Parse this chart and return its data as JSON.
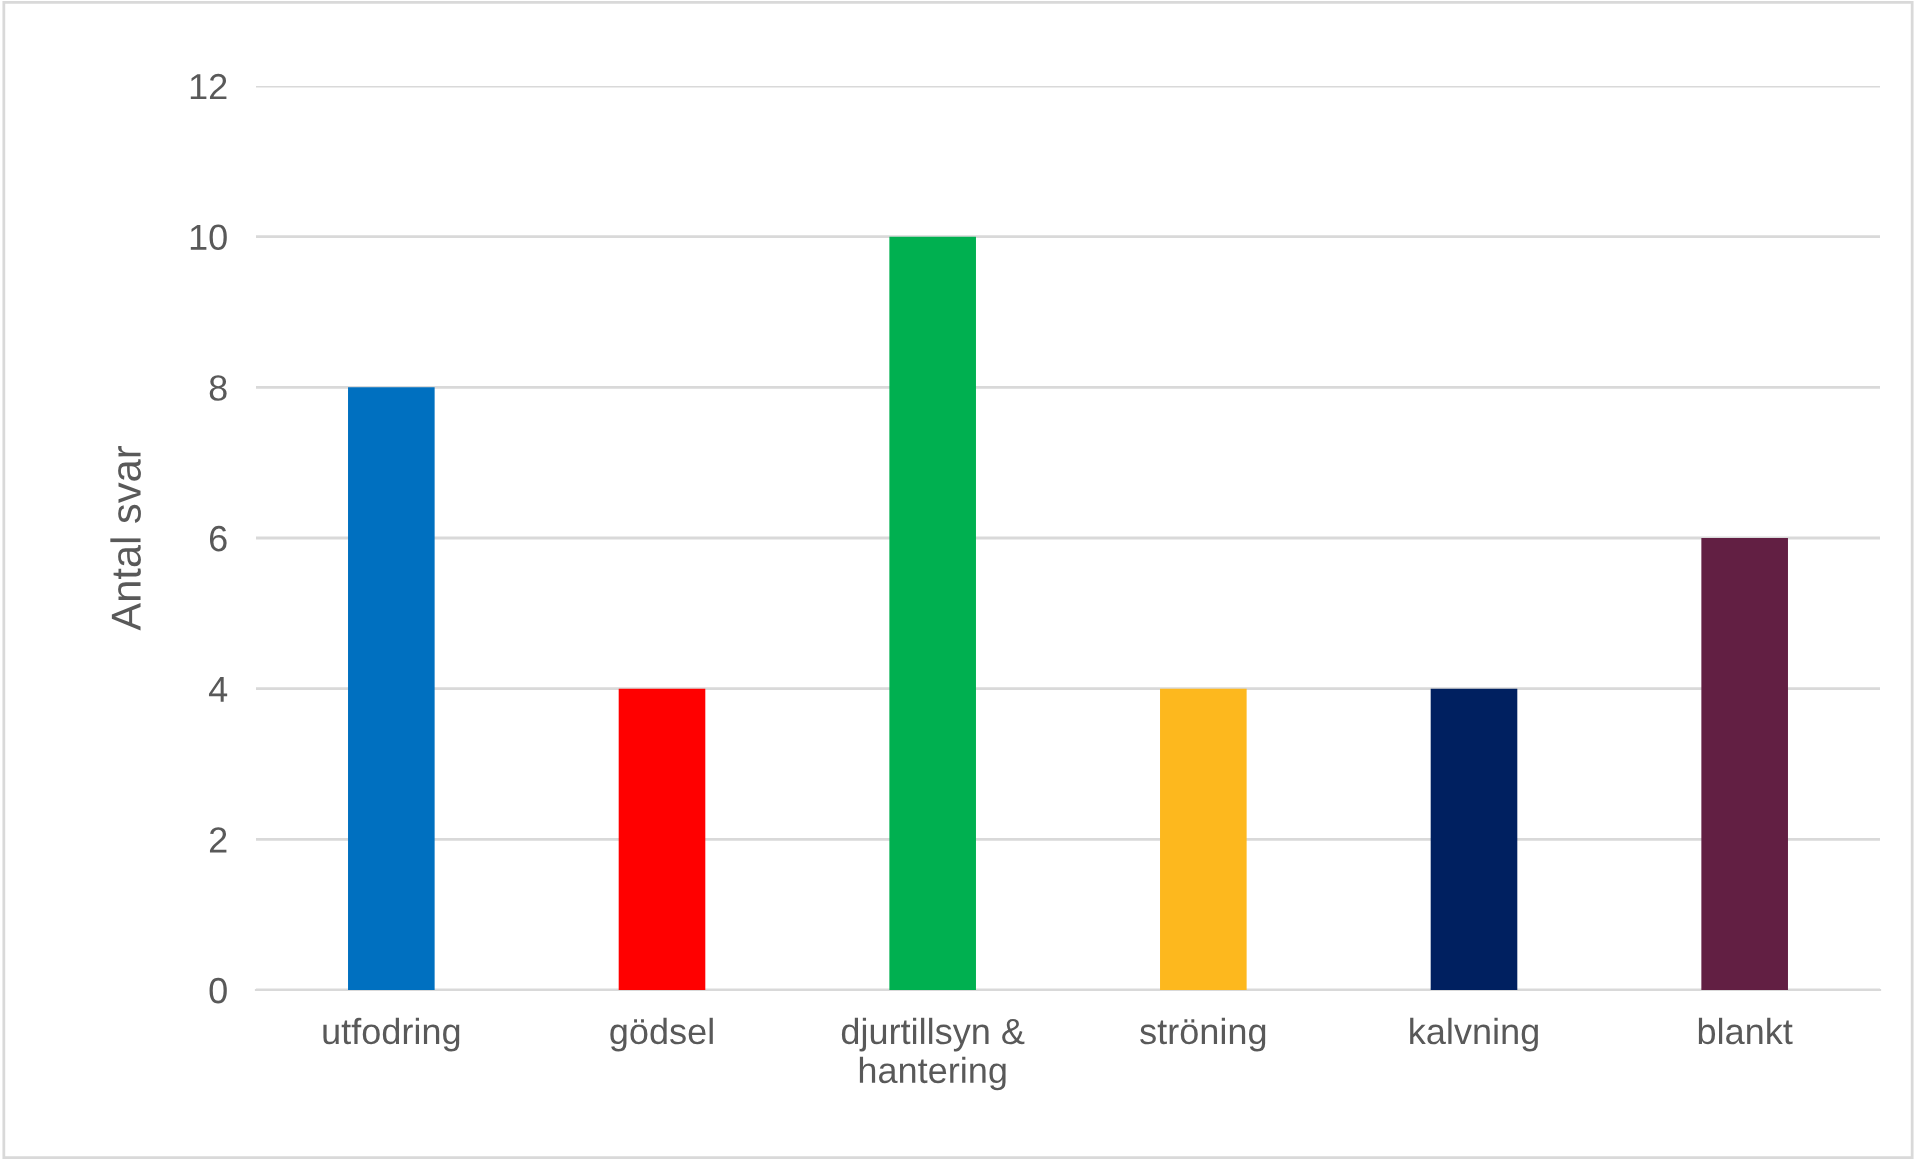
{
  "chart_data": {
    "type": "bar",
    "ylabel": "Antal svar",
    "categories": [
      "utfodring",
      "gödsel",
      "djurtillsyn & hantering",
      "ströning",
      "kalvning",
      "blankt"
    ],
    "values": [
      8,
      4,
      10,
      4,
      4,
      6
    ],
    "colors": [
      "#0070c0",
      "#ff0000",
      "#00b050",
      "#fdb81e",
      "#002060",
      "#621f43"
    ],
    "ylim": [
      0,
      12
    ],
    "yticks": [
      0,
      2,
      4,
      6,
      8,
      10,
      12
    ],
    "grid": "y",
    "legend": false
  }
}
